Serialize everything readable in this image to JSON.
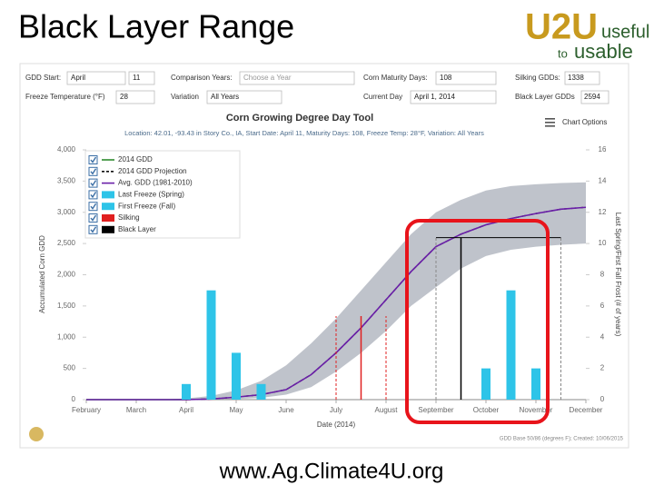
{
  "slide": {
    "title": "Black Layer Range",
    "footer": "www.Ag.Climate4U.org",
    "logo": {
      "mark": "U2U",
      "word1": "useful",
      "word2": "to",
      "word3": "usable"
    }
  },
  "form": {
    "start_label": "GDD Start:",
    "start_month": "April",
    "start_day": "11",
    "comparison_label": "Comparison Years:",
    "comparison_value": "Choose a Year",
    "maturity_label": "Corn Maturity Days:",
    "maturity_value": "108",
    "silking_label": "Silking GDDs:",
    "silking_value": "1338",
    "freeze_label": "Freeze Temperature (°F)",
    "freeze_value": "28",
    "variation_label": "Variation",
    "variation_value": "All Years",
    "day_label": "Current Day",
    "day_value": "April 1, 2014",
    "black_label": "Black Layer GDDs",
    "black_value": "2594"
  },
  "chart_options": "Chart Options",
  "chart_data": {
    "type": "line",
    "title": "Corn Growing Degree Day Tool",
    "subtitle": "Location: 42.01, -93.43 in Story Co., IA, Start Date: April 11, Maturity Days: 108, Freeze Temp: 28°F, Variation: All Years",
    "xlabel": "Date (2014)",
    "ylabel": "Accumulated Corn GDD",
    "y2label": "Last Spring/First Fall Frost (# of years)",
    "credit": "GDD Base 50/86 (degrees F); Created: 10/06/2015",
    "categories": [
      "February",
      null,
      "March",
      null,
      "April",
      null,
      "May",
      null,
      "June",
      null,
      "July",
      null,
      "August",
      null,
      "September",
      null,
      "October",
      null,
      "November",
      null,
      "December"
    ],
    "band": {
      "color": "#b4b9c2",
      "upper": [
        0,
        0,
        0,
        0,
        20,
        60,
        150,
        300,
        550,
        900,
        1300,
        1750,
        2200,
        2650,
        3000,
        3200,
        3350,
        3420,
        3450,
        3470,
        3480
      ],
      "lower": [
        0,
        0,
        0,
        0,
        0,
        0,
        10,
        30,
        80,
        200,
        450,
        750,
        1100,
        1500,
        1800,
        2100,
        2300,
        2400,
        2450,
        2480,
        2500
      ]
    },
    "series": [
      {
        "name": "2014 GDD",
        "kind": "line",
        "color": "#2e8b2e",
        "dash": false,
        "values": [
          0,
          0,
          0,
          0,
          0,
          null,
          null,
          null,
          null,
          null,
          null,
          null,
          null,
          null,
          null,
          null,
          null,
          null,
          null,
          null,
          null
        ]
      },
      {
        "name": "2014 GDD Projection",
        "kind": "line",
        "color": "#111111",
        "dash": true,
        "values": [
          null,
          null,
          null,
          null,
          0,
          10,
          40,
          80,
          160,
          400,
          750,
          1150,
          1600,
          2050,
          2450,
          2650,
          2800,
          2900,
          2980,
          3050,
          3080
        ]
      },
      {
        "name": "Avg. GDD (1981-2010)",
        "kind": "line",
        "color": "#6a1fa8",
        "dash": false,
        "values": [
          0,
          0,
          0,
          0,
          0,
          10,
          40,
          80,
          160,
          400,
          750,
          1150,
          1600,
          2050,
          2450,
          2650,
          2800,
          2900,
          2980,
          3050,
          3080
        ]
      },
      {
        "name": "Last Freeze (Spring)",
        "kind": "bar",
        "axis": "y2",
        "color": "#2ec4e8",
        "values": [
          null,
          null,
          null,
          null,
          1,
          7,
          3,
          1,
          null,
          null,
          null,
          null,
          null,
          null,
          null,
          null,
          null,
          null,
          null,
          null,
          null
        ]
      },
      {
        "name": "First Freeze (Fall)",
        "kind": "bar",
        "axis": "y2",
        "color": "#2ec4e8",
        "values": [
          null,
          null,
          null,
          null,
          null,
          null,
          null,
          null,
          null,
          null,
          null,
          null,
          null,
          null,
          null,
          null,
          2,
          7,
          2,
          null,
          null
        ]
      },
      {
        "name": "Silking",
        "kind": "vline",
        "color": "#e02020",
        "values": [
          null,
          null,
          null,
          null,
          null,
          null,
          null,
          null,
          null,
          null,
          null,
          1338,
          null,
          null,
          null,
          null,
          null,
          null,
          null,
          null,
          null
        ],
        "range_values": [
          null,
          null,
          null,
          null,
          null,
          null,
          null,
          null,
          null,
          null,
          1338,
          null,
          1338,
          null,
          null,
          null,
          null,
          null,
          null,
          null,
          null
        ]
      },
      {
        "name": "Black Layer",
        "kind": "vline",
        "color": "#000000",
        "range_color": "#888888",
        "values": [
          null,
          null,
          null,
          null,
          null,
          null,
          null,
          null,
          null,
          null,
          null,
          null,
          null,
          null,
          null,
          2594,
          null,
          null,
          null,
          null,
          null
        ],
        "range_values": [
          null,
          null,
          null,
          null,
          null,
          null,
          null,
          null,
          null,
          null,
          null,
          null,
          null,
          null,
          2594,
          null,
          null,
          null,
          null,
          2594,
          null
        ]
      }
    ],
    "ylim": [
      0,
      4000
    ],
    "yticks": [
      0,
      500,
      {
        "value": 1000,
        "label": "1,000"
      },
      {
        "value": 1500,
        "label": "1,500"
      },
      {
        "value": 2000,
        "label": "2,000"
      },
      {
        "value": 2500,
        "label": "2,500"
      },
      {
        "value": 3000,
        "label": "3,000"
      },
      {
        "value": 3500,
        "label": "3,500"
      },
      {
        "value": 4000,
        "label": "4,000"
      }
    ],
    "y2lim": [
      0,
      16
    ],
    "y2ticks": [
      0,
      2,
      4,
      6,
      8,
      10,
      12,
      14,
      16
    ],
    "grid": false
  }
}
